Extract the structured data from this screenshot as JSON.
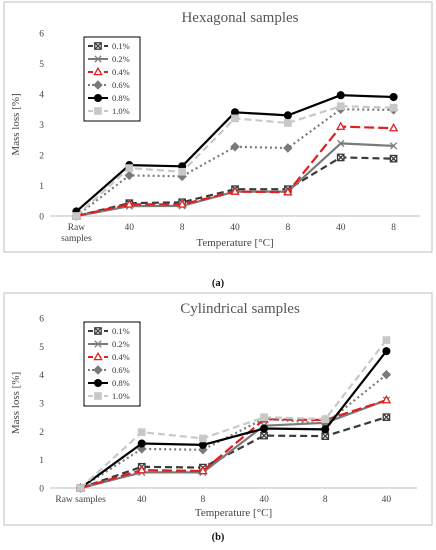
{
  "chart_data": [
    {
      "type": "line",
      "title": "Hexagonal samples",
      "xlabel": "Temperature [°C]",
      "ylabel": "Mass loss [%]",
      "ylim": [
        0,
        6
      ],
      "yticks": [
        "0",
        "1",
        "2",
        "3",
        "4",
        "5",
        "6"
      ],
      "categories": [
        "Raw samples",
        "40",
        "8",
        "40",
        "8",
        "40",
        "8"
      ],
      "legend_position": "top-left",
      "grid": false,
      "caption": "(a)",
      "series": [
        {
          "name": "0.1%",
          "color": "#3a3a3a",
          "dash": "dash",
          "marker": "square-x",
          "values": [
            0,
            0.42,
            0.45,
            0.88,
            0.88,
            1.92,
            1.88
          ]
        },
        {
          "name": "0.2%",
          "color": "#7a7a7a",
          "dash": "solid",
          "marker": "x",
          "values": [
            0,
            0.32,
            0.33,
            0.8,
            0.8,
            2.38,
            2.3
          ]
        },
        {
          "name": "0.4%",
          "color": "#e02020",
          "dash": "longdash",
          "marker": "triangle",
          "values": [
            0,
            0.38,
            0.38,
            0.8,
            0.78,
            2.93,
            2.88
          ]
        },
        {
          "name": "0.6%",
          "color": "#7a7a7a",
          "dash": "dot",
          "marker": "diamond",
          "values": [
            0,
            1.33,
            1.3,
            2.27,
            2.23,
            3.5,
            3.48
          ]
        },
        {
          "name": "0.8%",
          "color": "#000000",
          "dash": "solid",
          "marker": "circle",
          "values": [
            0.15,
            1.67,
            1.63,
            3.4,
            3.3,
            3.96,
            3.9
          ]
        },
        {
          "name": "1.0%",
          "color": "#c8c8c8",
          "dash": "dash",
          "marker": "square",
          "values": [
            0,
            1.57,
            1.45,
            3.2,
            3.05,
            3.6,
            3.55
          ]
        }
      ]
    },
    {
      "type": "line",
      "title": "Cylindrical samples",
      "xlabel": "Temperature [°C]",
      "ylabel": "Mass loss [%]",
      "ylim": [
        0,
        6
      ],
      "yticks": [
        "0",
        "1",
        "2",
        "3",
        "4",
        "5",
        "6"
      ],
      "categories": [
        "Raw samples",
        "40",
        "8",
        "40",
        "8",
        "40"
      ],
      "legend_position": "top-left",
      "grid": false,
      "caption": "(b)",
      "series": [
        {
          "name": "0.1%",
          "color": "#3a3a3a",
          "dash": "dash",
          "marker": "square-x",
          "values": [
            0,
            0.75,
            0.72,
            1.85,
            1.83,
            2.5
          ]
        },
        {
          "name": "0.2%",
          "color": "#7a7a7a",
          "dash": "solid",
          "marker": "x",
          "values": [
            0,
            0.55,
            0.55,
            2.2,
            2.3,
            3.1
          ]
        },
        {
          "name": "0.4%",
          "color": "#e02020",
          "dash": "longdash",
          "marker": "triangle",
          "values": [
            0,
            0.63,
            0.6,
            2.42,
            2.4,
            3.1
          ]
        },
        {
          "name": "0.6%",
          "color": "#7a7a7a",
          "dash": "dot",
          "marker": "diamond",
          "values": [
            0,
            1.38,
            1.35,
            2.45,
            2.27,
            4.0
          ]
        },
        {
          "name": "0.8%",
          "color": "#000000",
          "dash": "solid",
          "marker": "circle",
          "values": [
            0,
            1.57,
            1.52,
            2.1,
            2.07,
            4.83
          ]
        },
        {
          "name": "1.0%",
          "color": "#c8c8c8",
          "dash": "dash",
          "marker": "square",
          "values": [
            0,
            1.97,
            1.75,
            2.5,
            2.43,
            5.22
          ]
        }
      ]
    }
  ]
}
